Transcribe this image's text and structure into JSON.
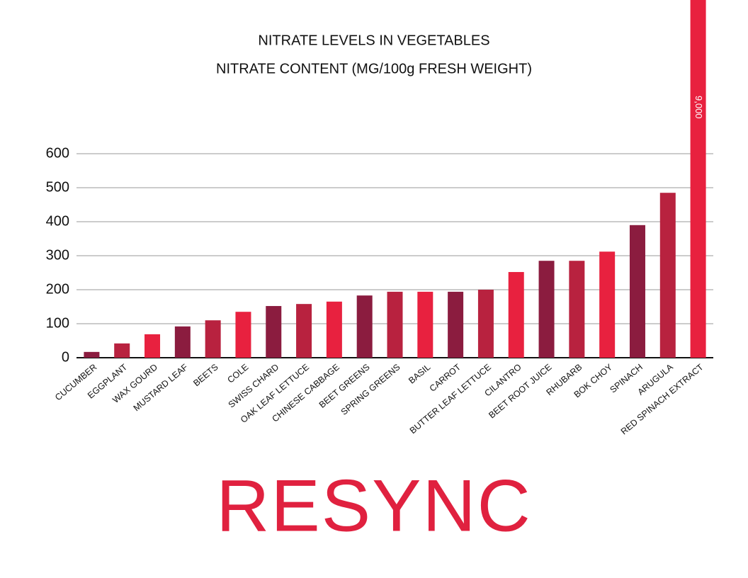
{
  "chart_data": {
    "type": "bar",
    "title": "NITRATE LEVELS IN VEGETABLES",
    "subtitle": "NITRATE CONTENT (MG/100g FRESH WEIGHT)",
    "categories": [
      "CUCUMBER",
      "EGGPLANT",
      "WAX GOURD",
      "MUSTARD LEAF",
      "BEETS",
      "COLE",
      "SWISS CHARD",
      "OAK LEAF LETTUCE",
      "CHINESE CABBAGE",
      "BEET GREENS",
      "SPRING GREENS",
      "BASIL",
      "CARROT",
      "BUTTER LEAF LETTUCE",
      "CILANTRO",
      "BEET ROOT JUICE",
      "RHUBARB",
      "BOK CHOY",
      "SPINACH",
      "ARUGULA",
      "RED SPINACH EXTRACT"
    ],
    "values": [
      17,
      42,
      69,
      92,
      110,
      135,
      152,
      158,
      165,
      183,
      194,
      194,
      194,
      200,
      252,
      285,
      285,
      312,
      390,
      485,
      9000
    ],
    "value_labels": [
      null,
      null,
      null,
      null,
      null,
      null,
      null,
      null,
      null,
      null,
      null,
      null,
      null,
      null,
      null,
      null,
      null,
      null,
      null,
      null,
      "9,000"
    ],
    "colors": [
      "#8b1c3f",
      "#b8223f",
      "#e8213f",
      "#8b1c3f",
      "#b8223f",
      "#e8213f",
      "#8b1c3f",
      "#b8223f",
      "#e8213f",
      "#8b1c3f",
      "#b8223f",
      "#e8213f",
      "#8b1c3f",
      "#b8223f",
      "#e8213f",
      "#8b1c3f",
      "#b8223f",
      "#e8213f",
      "#8b1c3f",
      "#b8223f",
      "#e8213f"
    ],
    "ylim": [
      0,
      600
    ],
    "yticks": [
      0,
      100,
      200,
      300,
      400,
      500,
      600
    ],
    "grid": true
  },
  "brand": "RESYNC"
}
